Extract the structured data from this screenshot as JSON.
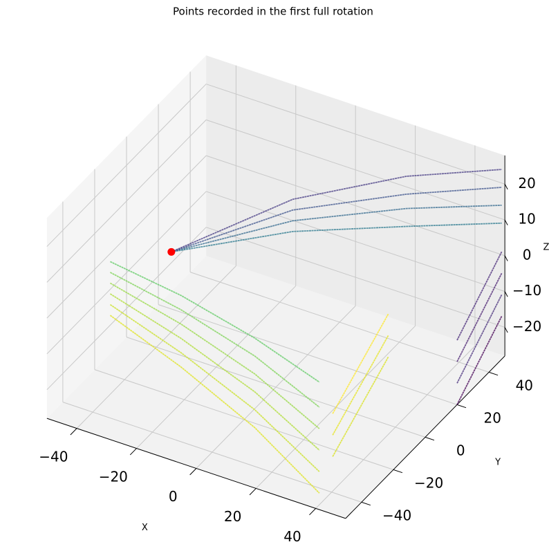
{
  "chart_data": {
    "type": "scatter3d",
    "title": "Points recorded in the first full rotation",
    "x_label": "X",
    "y_label": "Y",
    "z_label": "Z",
    "xlim": [
      -50,
      50
    ],
    "ylim": [
      -50,
      50
    ],
    "zlim": [
      -28,
      28
    ],
    "xticks": [
      {
        "value": -40,
        "label": "−40"
      },
      {
        "value": -20,
        "label": "−20"
      },
      0,
      20,
      40
    ],
    "yticks": [
      {
        "value": -40,
        "label": "−40"
      },
      {
        "value": -20,
        "label": "−20"
      },
      0,
      20,
      40
    ],
    "zticks": [
      {
        "value": -20,
        "label": "−20"
      },
      {
        "value": -10,
        "label": "−10"
      },
      0,
      10,
      20
    ],
    "grid": true,
    "point": {
      "x": -35,
      "y": 0,
      "z": 0,
      "color": "#ff0000"
    },
    "lines": [
      {
        "color": "#5ec962",
        "x": [
          -48,
          -20,
          10,
          38
        ],
        "y": [
          -14,
          -22,
          -32,
          -44
        ],
        "z": [
          0,
          2,
          3,
          4
        ]
      },
      {
        "color": "#7ad151",
        "x": [
          -48,
          -20,
          10,
          38
        ],
        "y": [
          -14,
          -22,
          -32,
          -44
        ],
        "z": [
          -3,
          -2,
          -2,
          -3
        ]
      },
      {
        "color": "#95d840",
        "x": [
          -48,
          -20,
          10,
          38
        ],
        "y": [
          -14,
          -22,
          -32,
          -44
        ],
        "z": [
          -6,
          -6,
          -7,
          -9
        ]
      },
      {
        "color": "#addc30",
        "x": [
          -48,
          -20,
          10,
          38
        ],
        "y": [
          -14,
          -22,
          -32,
          -44
        ],
        "z": [
          -9,
          -10,
          -12,
          -15
        ]
      },
      {
        "color": "#c8e020",
        "x": [
          -48,
          -20,
          10,
          38
        ],
        "y": [
          -14,
          -22,
          -32,
          -44
        ],
        "z": [
          -12,
          -14,
          -17,
          -21
        ]
      },
      {
        "color": "#dde318",
        "x": [
          -48,
          -20,
          10,
          38
        ],
        "y": [
          -14,
          -22,
          -32,
          -44
        ],
        "z": [
          -15,
          -18,
          -22,
          -27
        ]
      },
      {
        "color": "#2a788e",
        "x": [
          -35,
          -5,
          25,
          50
        ],
        "y": [
          0,
          20,
          35,
          48
        ],
        "z": [
          0,
          5,
          8,
          10
        ]
      },
      {
        "color": "#31688e",
        "x": [
          -35,
          -5,
          25,
          50
        ],
        "y": [
          0,
          20,
          35,
          48
        ],
        "z": [
          0,
          8,
          13,
          15
        ]
      },
      {
        "color": "#3b528b",
        "x": [
          -35,
          -5,
          25,
          50
        ],
        "y": [
          0,
          20,
          35,
          48
        ],
        "z": [
          0,
          11,
          17,
          20
        ]
      },
      {
        "color": "#443a83",
        "x": [
          -35,
          -5,
          25,
          50
        ],
        "y": [
          0,
          20,
          35,
          48
        ],
        "z": [
          0,
          14,
          22,
          25
        ]
      },
      {
        "color": "#482878",
        "x": [
          50,
          50
        ],
        "y": [
          20,
          48
        ],
        "z": [
          -10,
          2
        ]
      },
      {
        "color": "#481f70",
        "x": [
          50,
          50
        ],
        "y": [
          20,
          48
        ],
        "z": [
          -16,
          -4
        ]
      },
      {
        "color": "#472d7b",
        "x": [
          50,
          50
        ],
        "y": [
          20,
          48
        ],
        "z": [
          -22,
          -10
        ]
      },
      {
        "color": "#440154",
        "x": [
          50,
          50
        ],
        "y": [
          20,
          48
        ],
        "z": [
          -28,
          -16
        ]
      },
      {
        "color": "#fde725",
        "x": [
          35,
          35
        ],
        "y": [
          -30,
          5
        ],
        "z": [
          -12,
          0
        ]
      },
      {
        "color": "#e5e419",
        "x": [
          35,
          35
        ],
        "y": [
          -30,
          5
        ],
        "z": [
          -18,
          -6
        ]
      },
      {
        "color": "#d8e219",
        "x": [
          35,
          35
        ],
        "y": [
          -30,
          5
        ],
        "z": [
          -24,
          -12
        ]
      }
    ]
  }
}
